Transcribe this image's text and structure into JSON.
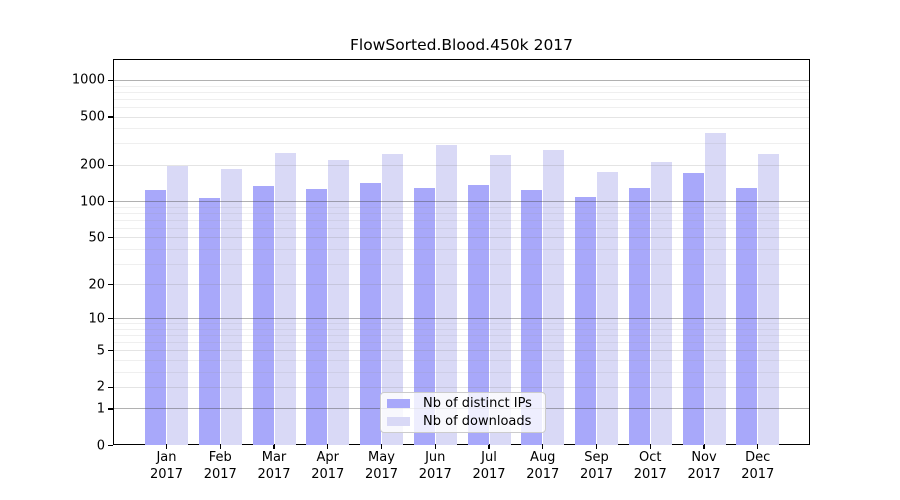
{
  "figure": {
    "title": "FlowSorted.Blood.450k 2017"
  },
  "legend": {
    "items": [
      {
        "label": "Nb of distinct IPs",
        "color": "#a8a8fa"
      },
      {
        "label": "Nb of downloads",
        "color": "#d9d9f6"
      }
    ]
  },
  "chart_data": {
    "type": "bar",
    "title": "FlowSorted.Blood.450k 2017",
    "categories": [
      "Jan 2017",
      "Feb 2017",
      "Mar 2017",
      "Apr 2017",
      "May 2017",
      "Jun 2017",
      "Jul 2017",
      "Aug 2017",
      "Sep 2017",
      "Oct 2017",
      "Nov 2017",
      "Dec 2017"
    ],
    "series": [
      {
        "name": "Nb of distinct IPs",
        "color": "#a8a8fa",
        "values": [
          124,
          108,
          136,
          128,
          144,
          130,
          137,
          125,
          110,
          130,
          174,
          130
        ]
      },
      {
        "name": "Nb of downloads",
        "color": "#d9d9f6",
        "values": [
          197,
          187,
          252,
          220,
          250,
          297,
          244,
          268,
          175,
          213,
          368,
          247
        ]
      }
    ],
    "y_scale": "log10(1+x)",
    "y_ticks": [
      0,
      1,
      2,
      5,
      10,
      20,
      50,
      100,
      200,
      500,
      1000
    ],
    "y_minor_gridlines": [
      3,
      4,
      6,
      7,
      8,
      9,
      30,
      40,
      60,
      70,
      80,
      90,
      300,
      400,
      600,
      700,
      800,
      900
    ],
    "ylim": [
      0,
      1490
    ],
    "grid": true,
    "legend_position": "lower center"
  }
}
